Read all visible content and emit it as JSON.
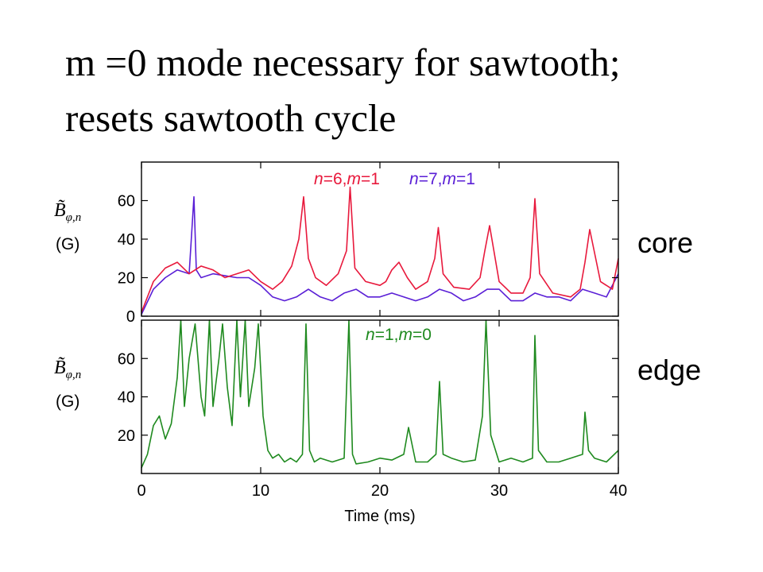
{
  "title_lines": [
    "m =0 mode necessary for sawtooth;",
    "resets sawtooth cycle"
  ],
  "side_labels": {
    "core": "core",
    "edge": "edge"
  },
  "colors": {
    "n6m1": "#e8193c",
    "n7m1": "#5a1fd6",
    "n1m0": "#1f8a1f",
    "axis": "#000000"
  },
  "chart_data": [
    {
      "type": "line",
      "panel": "core",
      "ylabel": {
        "symbol": "B̃",
        "subscript": "φ,n",
        "unit": "(G)"
      },
      "ylim": [
        0,
        80
      ],
      "yticks": [
        0,
        20,
        40,
        60
      ],
      "xlim": [
        0,
        40
      ],
      "x_tick_labels_shown": false,
      "series": [
        {
          "name": "n=6,m=1",
          "legend_parts": [
            [
              "n",
              true
            ],
            [
              "=6,",
              false
            ],
            [
              "m",
              true
            ],
            [
              "=1",
              false
            ]
          ],
          "x": [
            0,
            1,
            2,
            3,
            4,
            5,
            6,
            7,
            8,
            9,
            10,
            11,
            11.8,
            12.6,
            13.2,
            13.6,
            14,
            14.6,
            15.5,
            16.5,
            17.2,
            17.5,
            17.9,
            18.8,
            20,
            20.5,
            21,
            21.6,
            22.3,
            23,
            24,
            24.6,
            24.9,
            25.3,
            26.2,
            27.5,
            28.4,
            28.8,
            29.2,
            30,
            31,
            32,
            32.6,
            33,
            33.4,
            34.5,
            36,
            36.8,
            37.2,
            37.6,
            38.5,
            39.5,
            40
          ],
          "y": [
            2,
            18,
            25,
            28,
            22,
            26,
            24,
            20,
            22,
            24,
            18,
            14,
            18,
            26,
            40,
            62,
            30,
            20,
            16,
            22,
            34,
            67,
            25,
            18,
            16,
            18,
            24,
            28,
            20,
            14,
            18,
            30,
            46,
            22,
            15,
            14,
            20,
            34,
            47,
            18,
            12,
            12,
            20,
            61,
            22,
            12,
            10,
            14,
            28,
            45,
            18,
            14,
            30
          ]
        },
        {
          "name": "n=7,m=1",
          "legend_parts": [
            [
              "n",
              true
            ],
            [
              "=7,",
              false
            ],
            [
              "m",
              true
            ],
            [
              "=1",
              false
            ]
          ],
          "x": [
            0,
            1,
            2,
            3,
            4,
            4.4,
            4.6,
            5,
            6,
            7,
            8,
            9,
            10,
            11,
            12,
            13,
            14,
            15,
            16,
            17,
            18,
            19,
            20,
            21,
            22,
            23,
            24,
            25,
            26,
            27,
            28,
            29,
            30,
            31,
            32,
            33,
            34,
            35,
            36,
            37,
            38,
            39,
            40
          ],
          "y": [
            1,
            14,
            20,
            24,
            22,
            62,
            24,
            20,
            22,
            21,
            20,
            20,
            16,
            10,
            8,
            10,
            14,
            10,
            8,
            12,
            14,
            10,
            10,
            12,
            10,
            8,
            10,
            14,
            12,
            8,
            10,
            14,
            14,
            8,
            8,
            12,
            10,
            10,
            8,
            14,
            12,
            10,
            22
          ]
        }
      ]
    },
    {
      "type": "line",
      "panel": "edge",
      "ylabel": {
        "symbol": "B̃",
        "subscript": "φ,n",
        "unit": "(G)"
      },
      "ylim": [
        0,
        80
      ],
      "yticks": [
        20,
        40,
        60
      ],
      "xlim": [
        0,
        40
      ],
      "xticks": [
        0,
        10,
        20,
        30,
        40
      ],
      "xlabel": "Time (ms)",
      "series": [
        {
          "name": "n=1,m=0",
          "legend_parts": [
            [
              "n",
              true
            ],
            [
              "=1,",
              false
            ],
            [
              "m",
              true
            ],
            [
              "=0",
              false
            ]
          ],
          "x": [
            0,
            0.5,
            1,
            1.5,
            2,
            2.5,
            3,
            3.3,
            3.6,
            4,
            4.5,
            5,
            5.3,
            5.7,
            6,
            6.5,
            6.8,
            7.2,
            7.6,
            8,
            8.3,
            8.7,
            9,
            9.5,
            9.8,
            10.2,
            10.6,
            11,
            11.5,
            12,
            12.5,
            13,
            13.5,
            13.8,
            14.1,
            14.5,
            15,
            16,
            17,
            17.4,
            17.7,
            18,
            19,
            20,
            21,
            22,
            22.4,
            22.8,
            23,
            24,
            24.7,
            25,
            25.3,
            26,
            27,
            28,
            28.6,
            28.9,
            29.3,
            30,
            31,
            32,
            32.8,
            33,
            33.3,
            34,
            35,
            36,
            37,
            37.2,
            37.5,
            38,
            39,
            40
          ],
          "y": [
            3,
            10,
            25,
            30,
            18,
            26,
            50,
            80,
            35,
            60,
            78,
            40,
            30,
            80,
            35,
            60,
            78,
            45,
            25,
            80,
            40,
            80,
            35,
            55,
            78,
            30,
            12,
            8,
            10,
            6,
            8,
            6,
            10,
            78,
            12,
            6,
            8,
            6,
            8,
            80,
            10,
            5,
            6,
            8,
            7,
            10,
            24,
            12,
            6,
            6,
            10,
            48,
            10,
            8,
            6,
            7,
            30,
            80,
            20,
            6,
            8,
            6,
            8,
            72,
            12,
            6,
            6,
            8,
            10,
            32,
            12,
            8,
            6,
            12
          ]
        }
      ]
    }
  ]
}
